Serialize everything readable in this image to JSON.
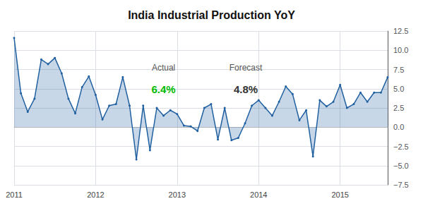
{
  "chart_data": {
    "type": "line",
    "title": "India Industrial Production YoY",
    "categories": [
      "2011",
      null,
      null,
      null,
      null,
      null,
      null,
      null,
      null,
      null,
      null,
      null,
      "2012",
      null,
      null,
      null,
      null,
      null,
      null,
      null,
      null,
      null,
      null,
      null,
      "2013",
      null,
      null,
      null,
      null,
      null,
      null,
      null,
      null,
      null,
      null,
      null,
      "2014",
      null,
      null,
      null,
      null,
      null,
      null,
      null,
      null,
      null,
      null,
      null,
      "2015",
      null,
      null,
      null,
      null,
      null,
      null,
      null
    ],
    "values": [
      11.6,
      4.4,
      2.0,
      3.7,
      8.8,
      8.2,
      9.0,
      7.0,
      3.7,
      1.8,
      5.2,
      6.6,
      4.2,
      1.0,
      2.8,
      3.0,
      6.5,
      2.8,
      -4.2,
      2.8,
      -3.0,
      2.5,
      1.5,
      2.2,
      1.7,
      0.2,
      0.1,
      -0.5,
      2.5,
      3.0,
      -1.6,
      2.5,
      -1.7,
      -1.4,
      0.5,
      2.8,
      3.5,
      2.5,
      1.5,
      3.3,
      5.3,
      4.3,
      0.9,
      2.2,
      -3.8,
      3.5,
      2.7,
      3.3,
      5.5,
      2.5,
      3.0,
      4.5,
      3.3,
      4.5,
      4.5,
      6.5
    ],
    "color": "#2060a0",
    "ylim": [
      -7.5,
      12.5
    ],
    "yticks": [
      {
        "value": -7.5,
        "label": "−7.5"
      },
      {
        "value": -5.0,
        "label": "−5.0"
      },
      {
        "value": -2.5,
        "label": "−2.5"
      },
      {
        "value": 0.0,
        "label": "0.0"
      },
      2.5,
      {
        "value": 5.0,
        "label": "5.0"
      },
      7.5,
      {
        "value": 10.0,
        "label": "10.0"
      },
      12.5
    ],
    "grid": true,
    "annotations": [
      {
        "text": "Actual"
      },
      {
        "text": "6.4%",
        "color": "#00bb00"
      },
      {
        "text": "Forecast"
      },
      {
        "text": "4.8%",
        "color": "#333333"
      }
    ]
  }
}
